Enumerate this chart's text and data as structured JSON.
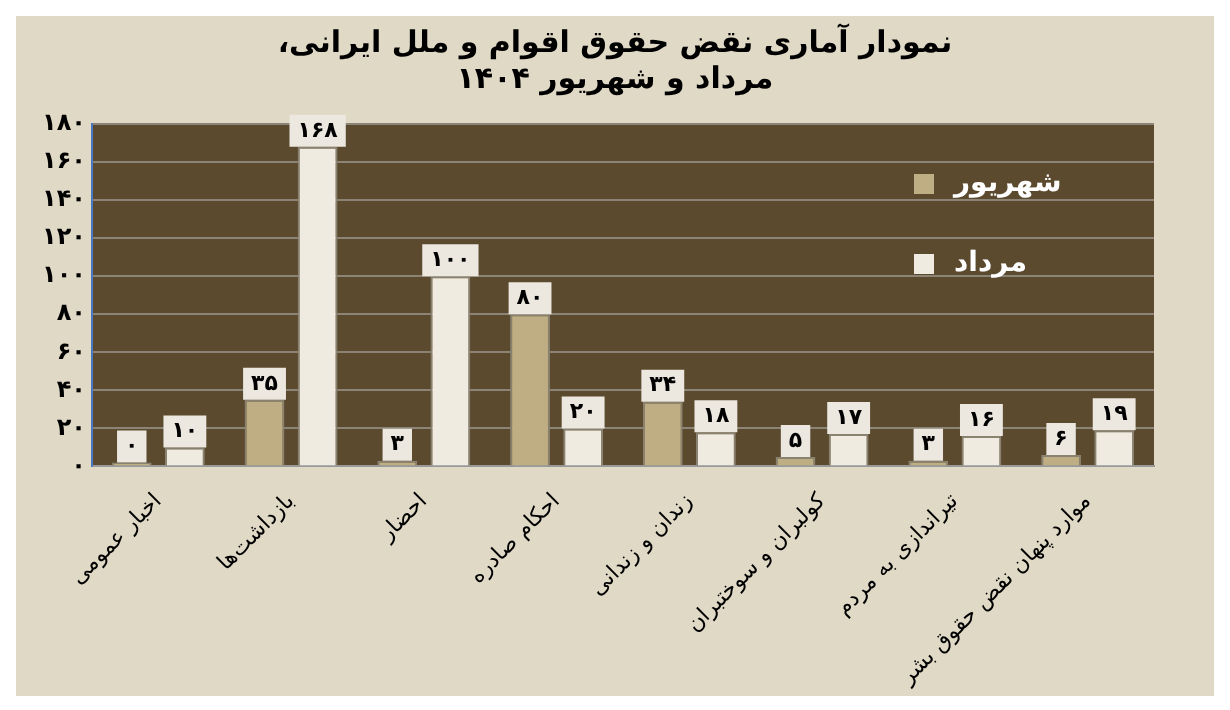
{
  "chart_data": {
    "type": "bar",
    "title": "نمودار آماری نقض حقوق اقوام و ملل ایرانی، مرداد و شهریور ۱۴۰۴",
    "categories": [
      "اخبار عمومی",
      "بازداشت‌ها",
      "احضار",
      "احکام صادره",
      "زندان و زندانی",
      "کولبران و سوختبران",
      "تیراندازی به مردم",
      "موارد پنهان نقض حقوق بشر"
    ],
    "series": [
      {
        "name": "شهریور",
        "color": "#bfae84",
        "values": [
          0,
          35,
          3,
          80,
          34,
          5,
          3,
          6
        ],
        "value_labels": [
          "۰",
          "۳۵",
          "۳",
          "۸۰",
          "۳۴",
          "۵",
          "۳",
          "۶"
        ]
      },
      {
        "name": "مرداد",
        "color": "#f0ebe1",
        "values": [
          10,
          168,
          100,
          20,
          18,
          17,
          16,
          19
        ],
        "value_labels": [
          "۱۰",
          "۱۶۸",
          "۱۰۰",
          "۲۰",
          "۱۸",
          "۱۷",
          "۱۶",
          "۱۹"
        ]
      }
    ],
    "ylim": [
      0,
      180
    ],
    "yticks": [
      {
        "value": 0,
        "label": "۰"
      },
      {
        "value": 20,
        "label": "۲۰"
      },
      {
        "value": 40,
        "label": "۴۰"
      },
      {
        "value": 60,
        "label": "۶۰"
      },
      {
        "value": 80,
        "label": "۸۰"
      },
      {
        "value": 100,
        "label": "۱۰۰"
      },
      {
        "value": 120,
        "label": "۱۲۰"
      },
      {
        "value": 140,
        "label": "۱۴۰"
      },
      {
        "value": 160,
        "label": "۱۶۰"
      },
      {
        "value": 180,
        "label": "۱۸۰"
      }
    ],
    "grid": "y",
    "legend": "top right"
  }
}
